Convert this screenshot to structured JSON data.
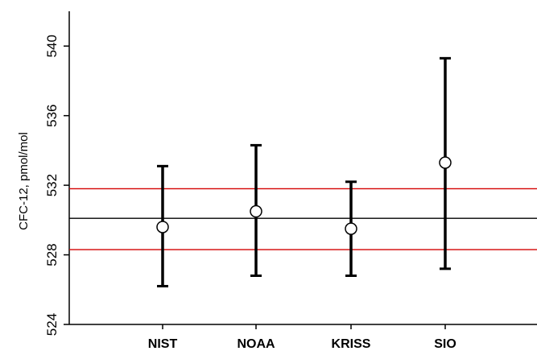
{
  "chart_data": {
    "type": "scatter",
    "title": "",
    "xlabel": "",
    "ylabel": "CFC-12, pmol/mol",
    "categories": [
      "NIST",
      "NOAA",
      "KRISS",
      "SIO"
    ],
    "series": [
      {
        "values": [
          529.6,
          530.5,
          529.5,
          533.3
        ],
        "error_low": [
          526.2,
          526.8,
          526.8,
          527.2
        ],
        "error_high": [
          533.1,
          534.3,
          532.2,
          539.3
        ]
      }
    ],
    "reference_lines": [
      {
        "value": 530.1,
        "color": "#000000"
      },
      {
        "value": 531.8,
        "color": "#d40000"
      },
      {
        "value": 528.3,
        "color": "#d40000"
      }
    ],
    "ylim": [
      524,
      542
    ],
    "yticks": [
      "524",
      "528",
      "532",
      "536",
      "540"
    ],
    "grid": false,
    "legend": "none"
  }
}
